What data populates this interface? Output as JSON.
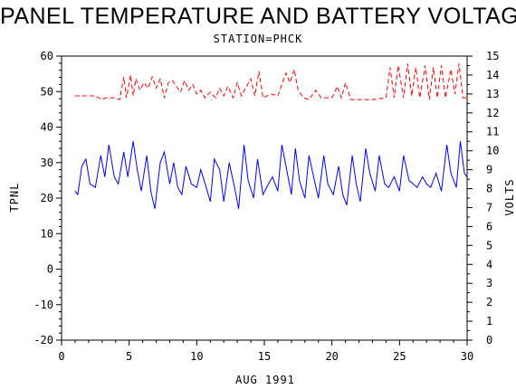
{
  "chart_data": {
    "type": "line",
    "title": "PANEL TEMPERATURE AND BATTERY VOLTAGE",
    "subtitle": "STATION=PHCK",
    "xlabel": "AUG 1991",
    "ylabel_left": "TPNL",
    "ylabel_right": "VOLTS",
    "xlim": [
      0,
      30
    ],
    "ylim_left": [
      -20,
      60
    ],
    "ylim_right": [
      0,
      15
    ],
    "x_ticks": [
      0,
      5,
      10,
      15,
      20,
      25,
      30
    ],
    "y_ticks_left": [
      -20,
      -10,
      0,
      10,
      20,
      30,
      40,
      50,
      60
    ],
    "y_ticks_right": [
      0,
      1,
      2,
      3,
      4,
      5,
      6,
      7,
      8,
      9,
      10,
      11,
      12,
      13,
      14,
      15
    ],
    "grid": false,
    "series": [
      {
        "axis": "left",
        "color": "#0000ff",
        "style": "solid",
        "points": [
          [
            1.0,
            22
          ],
          [
            1.2,
            21
          ],
          [
            1.5,
            29
          ],
          [
            1.8,
            31
          ],
          [
            2.1,
            24
          ],
          [
            2.5,
            23
          ],
          [
            2.9,
            32
          ],
          [
            3.2,
            26
          ],
          [
            3.5,
            35
          ],
          [
            3.9,
            26
          ],
          [
            4.2,
            24
          ],
          [
            4.6,
            33
          ],
          [
            4.9,
            26
          ],
          [
            5.3,
            36
          ],
          [
            5.6,
            28
          ],
          [
            5.9,
            22
          ],
          [
            6.3,
            32
          ],
          [
            6.6,
            22
          ],
          [
            6.9,
            17
          ],
          [
            7.3,
            30
          ],
          [
            7.6,
            33
          ],
          [
            8.0,
            24
          ],
          [
            8.3,
            30
          ],
          [
            8.6,
            23
          ],
          [
            8.9,
            21
          ],
          [
            9.2,
            29
          ],
          [
            9.6,
            24
          ],
          [
            10.0,
            23
          ],
          [
            10.3,
            28
          ],
          [
            10.7,
            23
          ],
          [
            11.0,
            19
          ],
          [
            11.3,
            31
          ],
          [
            11.7,
            28
          ],
          [
            12.0,
            19
          ],
          [
            12.4,
            30
          ],
          [
            12.8,
            23
          ],
          [
            13.1,
            17
          ],
          [
            13.5,
            35
          ],
          [
            13.8,
            25
          ],
          [
            14.2,
            20
          ],
          [
            14.5,
            31
          ],
          [
            14.9,
            21
          ],
          [
            15.3,
            24
          ],
          [
            15.6,
            26
          ],
          [
            16.0,
            22
          ],
          [
            16.3,
            35
          ],
          [
            16.7,
            27
          ],
          [
            17.0,
            21
          ],
          [
            17.3,
            34
          ],
          [
            17.6,
            25
          ],
          [
            18.0,
            20
          ],
          [
            18.3,
            32
          ],
          [
            18.7,
            25
          ],
          [
            19.0,
            20
          ],
          [
            19.4,
            32
          ],
          [
            19.7,
            24
          ],
          [
            20.1,
            21
          ],
          [
            20.5,
            29
          ],
          [
            20.8,
            21
          ],
          [
            21.1,
            18
          ],
          [
            21.5,
            32
          ],
          [
            21.8,
            24
          ],
          [
            22.1,
            19
          ],
          [
            22.5,
            34
          ],
          [
            22.8,
            27
          ],
          [
            23.2,
            22
          ],
          [
            23.5,
            32
          ],
          [
            23.9,
            24
          ],
          [
            24.2,
            23
          ],
          [
            24.6,
            26
          ],
          [
            25.0,
            22
          ],
          [
            25.3,
            32
          ],
          [
            25.7,
            25
          ],
          [
            26.0,
            24
          ],
          [
            26.3,
            23
          ],
          [
            26.7,
            26
          ],
          [
            27.0,
            24
          ],
          [
            27.3,
            23
          ],
          [
            27.7,
            27
          ],
          [
            28.1,
            22
          ],
          [
            28.5,
            35
          ],
          [
            28.8,
            27
          ],
          [
            29.2,
            23
          ],
          [
            29.5,
            36
          ],
          [
            29.8,
            27
          ],
          [
            30.0,
            26
          ]
        ]
      },
      {
        "axis": "right",
        "color": "#ff0000",
        "style": "dashed",
        "points": [
          [
            1.0,
            12.9
          ],
          [
            2.5,
            12.9
          ],
          [
            3.0,
            12.7
          ],
          [
            3.3,
            12.8
          ],
          [
            3.8,
            12.8
          ],
          [
            4.3,
            12.7
          ],
          [
            4.6,
            13.9
          ],
          [
            4.8,
            12.8
          ],
          [
            5.1,
            14.0
          ],
          [
            5.3,
            12.9
          ],
          [
            5.5,
            13.8
          ],
          [
            5.8,
            13.2
          ],
          [
            6.1,
            13.6
          ],
          [
            6.4,
            13.3
          ],
          [
            6.7,
            13.9
          ],
          [
            7.0,
            13.3
          ],
          [
            7.3,
            13.8
          ],
          [
            7.6,
            12.8
          ],
          [
            7.9,
            13.6
          ],
          [
            8.2,
            13.7
          ],
          [
            8.5,
            13.4
          ],
          [
            8.8,
            13.1
          ],
          [
            9.1,
            13.7
          ],
          [
            9.4,
            13.2
          ],
          [
            9.7,
            13.5
          ],
          [
            10.0,
            13.0
          ],
          [
            10.3,
            13.2
          ],
          [
            10.6,
            12.8
          ],
          [
            11.0,
            13.1
          ],
          [
            11.4,
            12.8
          ],
          [
            11.7,
            13.3
          ],
          [
            12.0,
            12.9
          ],
          [
            12.3,
            13.4
          ],
          [
            12.7,
            12.8
          ],
          [
            13.0,
            13.6
          ],
          [
            13.3,
            12.9
          ],
          [
            13.6,
            13.3
          ],
          [
            14.0,
            13.8
          ],
          [
            14.3,
            12.9
          ],
          [
            14.6,
            14.2
          ],
          [
            14.9,
            12.8
          ],
          [
            15.5,
            13.0
          ],
          [
            16.0,
            12.9
          ],
          [
            16.6,
            14.1
          ],
          [
            16.9,
            13.6
          ],
          [
            17.2,
            14.3
          ],
          [
            17.5,
            13.2
          ],
          [
            17.9,
            12.8
          ],
          [
            18.3,
            12.7
          ],
          [
            18.8,
            13.2
          ],
          [
            19.2,
            12.8
          ],
          [
            20.0,
            12.8
          ],
          [
            20.4,
            13.4
          ],
          [
            20.7,
            12.8
          ],
          [
            21.0,
            13.6
          ],
          [
            21.4,
            12.7
          ],
          [
            22.0,
            12.7
          ],
          [
            23.0,
            12.7
          ],
          [
            24.0,
            12.8
          ],
          [
            24.3,
            14.4
          ],
          [
            24.6,
            12.8
          ],
          [
            24.9,
            14.5
          ],
          [
            25.3,
            12.8
          ],
          [
            25.6,
            14.6
          ],
          [
            25.9,
            12.9
          ],
          [
            26.2,
            14.4
          ],
          [
            26.5,
            12.8
          ],
          [
            26.9,
            14.5
          ],
          [
            27.2,
            12.7
          ],
          [
            27.5,
            14.4
          ],
          [
            27.8,
            12.8
          ],
          [
            28.1,
            14.5
          ],
          [
            28.4,
            12.8
          ],
          [
            28.8,
            14.3
          ],
          [
            29.1,
            13.0
          ],
          [
            29.4,
            14.6
          ],
          [
            29.7,
            12.8
          ],
          [
            30.0,
            12.8
          ]
        ]
      }
    ]
  }
}
